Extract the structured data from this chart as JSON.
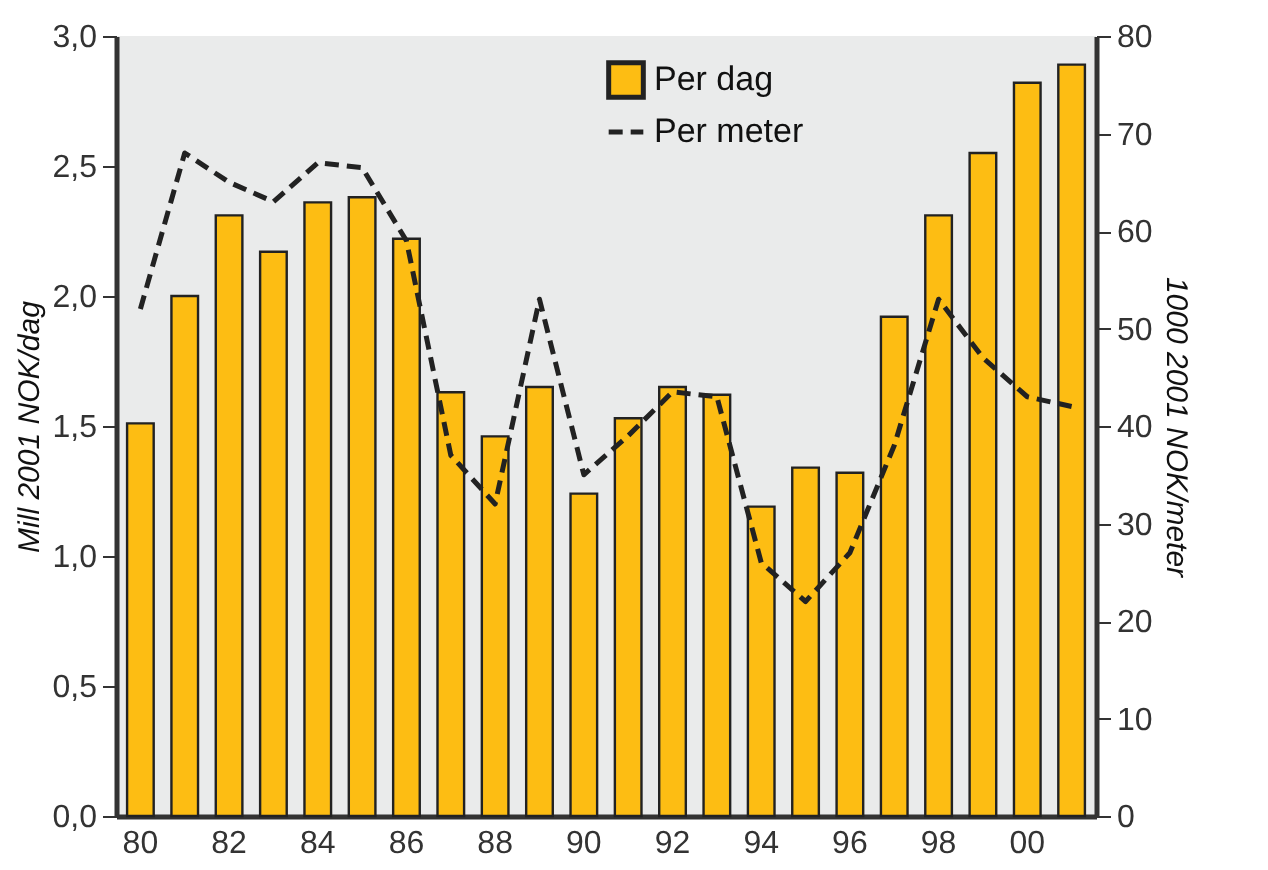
{
  "chart_data": {
    "type": "bar",
    "ylabel": "Mill 2001 NOK/dag",
    "y2label": "1000 2001 NOK/meter",
    "categories": [
      "80",
      null,
      "82",
      null,
      "84",
      null,
      "86",
      null,
      "88",
      null,
      "90",
      null,
      "92",
      null,
      "94",
      null,
      "96",
      null,
      "98",
      null,
      "00",
      null
    ],
    "series": [
      {
        "name": "Per dag",
        "color": "#fdbd13",
        "values": [
          1.51,
          2.0,
          2.31,
          2.17,
          2.36,
          2.38,
          2.22,
          1.63,
          1.46,
          1.65,
          1.24,
          1.53,
          1.65,
          1.62,
          1.19,
          1.34,
          1.32,
          1.92,
          2.31,
          2.55,
          2.82,
          2.89
        ]
      },
      {
        "name": "Per meter",
        "type": "line",
        "axis": "y2",
        "color": "#222222",
        "line_style": "dashed",
        "values": [
          52,
          68,
          65,
          63,
          67,
          66.5,
          59,
          37,
          32,
          53,
          35,
          39,
          43.5,
          43,
          26,
          22,
          27,
          38,
          53,
          47,
          43,
          42
        ]
      }
    ],
    "ylim": [
      0,
      3
    ],
    "yticks": [
      {
        "value": 0,
        "label": "0,0"
      },
      {
        "value": 0.5,
        "label": "0,5"
      },
      {
        "value": 1,
        "label": "1,0"
      },
      {
        "value": 1.5,
        "label": "1,5"
      },
      {
        "value": 2,
        "label": "2,0"
      },
      {
        "value": 2.5,
        "label": "2,5"
      },
      {
        "value": 3,
        "label": "3,0"
      }
    ],
    "y2lim": [
      0,
      80
    ],
    "y2ticks": [
      0,
      10,
      20,
      30,
      40,
      50,
      60,
      70,
      80
    ],
    "grid": false,
    "legend": "top right"
  }
}
